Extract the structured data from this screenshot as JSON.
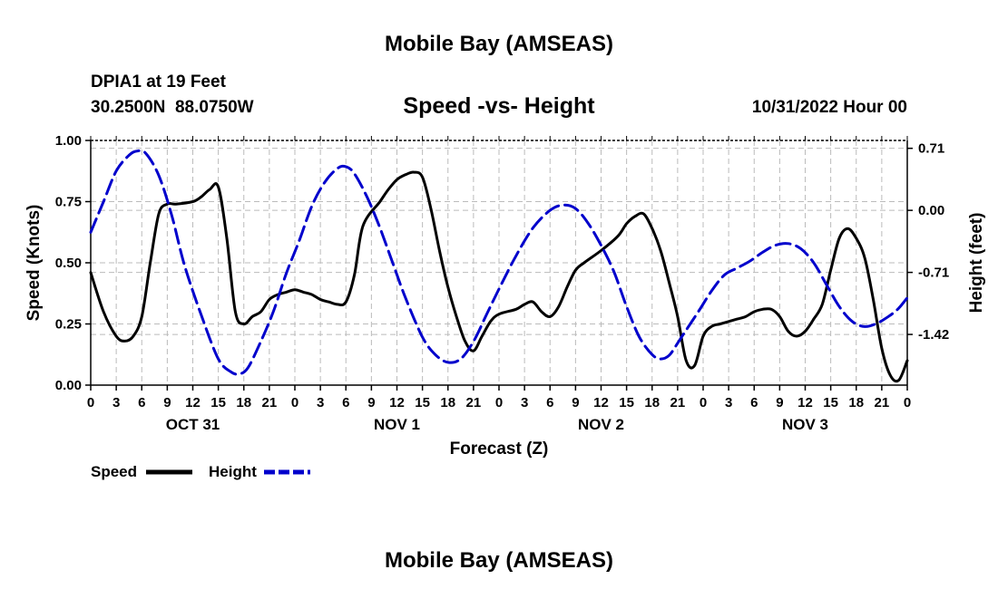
{
  "colors": {
    "speed": "#000000",
    "height": "#0000cc",
    "grid": "#bbbbbb",
    "background": "#ffffff"
  },
  "chart_data": {
    "type": "line",
    "title": "Mobile Bay (AMSEAS)",
    "footer_title": "Mobile Bay (AMSEAS)",
    "station": "DPIA1 at 19 Feet",
    "coords": "30.2500N  88.0750W",
    "subtitle": "Speed -vs- Height",
    "datetime": "10/31/2022 Hour 00",
    "xlabel": "Forecast (Z)",
    "ylabel_left": "Speed (Knots)",
    "ylabel_right": "Height (feet)",
    "xlim": [
      0,
      96
    ],
    "ylim_left": [
      0,
      1
    ],
    "ylim_right": [
      -2.0,
      0.8
    ],
    "x_tick_labels": [
      "0",
      "3",
      "6",
      "9",
      "12",
      "15",
      "18",
      "21",
      "0",
      "3",
      "6",
      "9",
      "12",
      "15",
      "18",
      "21",
      "0",
      "3",
      "6",
      "9",
      "12",
      "15",
      "18",
      "21",
      "0",
      "3",
      "6",
      "9",
      "12",
      "15",
      "18",
      "21",
      "0"
    ],
    "y_ticks_left": [
      "0.00",
      "0.25",
      "0.50",
      "0.75",
      "1.00"
    ],
    "y_ticks_left_values": [
      0,
      0.25,
      0.5,
      0.75,
      1.0
    ],
    "y_ticks_right": [
      "0.71",
      "0.00",
      "-0.71",
      "-1.42"
    ],
    "y_ticks_right_values": [
      0.71,
      0.0,
      -0.71,
      -1.42
    ],
    "day_labels": [
      {
        "label": "OCT 31",
        "hour": 12
      },
      {
        "label": "NOV 1",
        "hour": 36
      },
      {
        "label": "NOV 2",
        "hour": 60
      },
      {
        "label": "NOV 3",
        "hour": 84
      }
    ],
    "legend": [
      {
        "name": "Speed",
        "style": "solid"
      },
      {
        "name": "Height",
        "style": "dashed"
      }
    ],
    "series": [
      {
        "name": "Speed",
        "axis": "left",
        "points": [
          [
            0,
            0.46
          ],
          [
            1.5,
            0.3
          ],
          [
            3,
            0.2
          ],
          [
            4,
            0.18
          ],
          [
            5,
            0.2
          ],
          [
            6,
            0.28
          ],
          [
            7,
            0.5
          ],
          [
            8,
            0.7
          ],
          [
            9,
            0.74
          ],
          [
            10,
            0.74
          ],
          [
            12,
            0.75
          ],
          [
            13,
            0.77
          ],
          [
            14,
            0.8
          ],
          [
            15,
            0.81
          ],
          [
            16,
            0.6
          ],
          [
            17,
            0.3
          ],
          [
            18,
            0.25
          ],
          [
            19,
            0.28
          ],
          [
            20,
            0.3
          ],
          [
            21,
            0.35
          ],
          [
            22,
            0.37
          ],
          [
            23,
            0.38
          ],
          [
            24,
            0.39
          ],
          [
            25,
            0.38
          ],
          [
            26,
            0.37
          ],
          [
            27,
            0.35
          ],
          [
            28,
            0.34
          ],
          [
            29,
            0.33
          ],
          [
            30,
            0.34
          ],
          [
            31,
            0.45
          ],
          [
            32,
            0.65
          ],
          [
            34,
            0.75
          ],
          [
            35,
            0.8
          ],
          [
            36,
            0.84
          ],
          [
            37,
            0.86
          ],
          [
            38,
            0.87
          ],
          [
            39,
            0.85
          ],
          [
            40,
            0.72
          ],
          [
            41,
            0.55
          ],
          [
            42,
            0.4
          ],
          [
            43,
            0.28
          ],
          [
            44,
            0.18
          ],
          [
            45,
            0.14
          ],
          [
            46,
            0.2
          ],
          [
            47,
            0.26
          ],
          [
            48,
            0.29
          ],
          [
            50,
            0.31
          ],
          [
            51,
            0.33
          ],
          [
            52,
            0.34
          ],
          [
            53,
            0.3
          ],
          [
            54,
            0.28
          ],
          [
            55,
            0.32
          ],
          [
            56,
            0.4
          ],
          [
            57,
            0.47
          ],
          [
            58,
            0.5
          ],
          [
            60,
            0.55
          ],
          [
            62,
            0.61
          ],
          [
            63,
            0.66
          ],
          [
            64,
            0.69
          ],
          [
            65,
            0.7
          ],
          [
            66,
            0.64
          ],
          [
            67,
            0.55
          ],
          [
            68,
            0.42
          ],
          [
            69,
            0.28
          ],
          [
            70,
            0.1
          ],
          [
            71,
            0.08
          ],
          [
            72,
            0.2
          ],
          [
            73,
            0.24
          ],
          [
            74,
            0.25
          ],
          [
            75,
            0.26
          ],
          [
            76,
            0.27
          ],
          [
            77,
            0.28
          ],
          [
            78,
            0.3
          ],
          [
            79,
            0.31
          ],
          [
            80,
            0.31
          ],
          [
            81,
            0.28
          ],
          [
            82,
            0.22
          ],
          [
            83,
            0.2
          ],
          [
            84,
            0.22
          ],
          [
            85,
            0.27
          ],
          [
            86,
            0.33
          ],
          [
            87,
            0.47
          ],
          [
            88,
            0.6
          ],
          [
            89,
            0.64
          ],
          [
            90,
            0.6
          ],
          [
            91,
            0.52
          ],
          [
            92,
            0.35
          ],
          [
            93,
            0.15
          ],
          [
            94,
            0.04
          ],
          [
            95,
            0.02
          ],
          [
            96,
            0.1
          ]
        ]
      },
      {
        "name": "Height",
        "axis": "right",
        "points": [
          [
            0,
            -0.25
          ],
          [
            1.5,
            0.1
          ],
          [
            3,
            0.45
          ],
          [
            4.5,
            0.63
          ],
          [
            5.5,
            0.68
          ],
          [
            6.5,
            0.65
          ],
          [
            8,
            0.4
          ],
          [
            9.5,
            -0.05
          ],
          [
            11,
            -0.62
          ],
          [
            13,
            -1.2
          ],
          [
            15,
            -1.7
          ],
          [
            16.5,
            -1.85
          ],
          [
            17.5,
            -1.87
          ],
          [
            18.5,
            -1.8
          ],
          [
            20,
            -1.5
          ],
          [
            21.5,
            -1.15
          ],
          [
            23,
            -0.72
          ],
          [
            24.5,
            -0.35
          ],
          [
            26,
            0.05
          ],
          [
            27.5,
            0.32
          ],
          [
            29,
            0.48
          ],
          [
            30,
            0.5
          ],
          [
            31,
            0.42
          ],
          [
            32.5,
            0.15
          ],
          [
            34,
            -0.2
          ],
          [
            35.5,
            -0.6
          ],
          [
            37,
            -1.0
          ],
          [
            39,
            -1.45
          ],
          [
            40.5,
            -1.65
          ],
          [
            42,
            -1.74
          ],
          [
            43.5,
            -1.7
          ],
          [
            45,
            -1.5
          ],
          [
            46.5,
            -1.2
          ],
          [
            48,
            -0.9
          ],
          [
            50,
            -0.52
          ],
          [
            52,
            -0.2
          ],
          [
            54,
            0.0
          ],
          [
            55.5,
            0.06
          ],
          [
            57,
            0.02
          ],
          [
            58.5,
            -0.15
          ],
          [
            60,
            -0.4
          ],
          [
            61.5,
            -0.7
          ],
          [
            63,
            -1.1
          ],
          [
            64.5,
            -1.45
          ],
          [
            66,
            -1.65
          ],
          [
            67,
            -1.7
          ],
          [
            68,
            -1.66
          ],
          [
            69,
            -1.52
          ],
          [
            70,
            -1.37
          ],
          [
            71.5,
            -1.15
          ],
          [
            73,
            -0.92
          ],
          [
            74.5,
            -0.74
          ],
          [
            76,
            -0.66
          ],
          [
            77.5,
            -0.58
          ],
          [
            79,
            -0.48
          ],
          [
            80.5,
            -0.4
          ],
          [
            82,
            -0.38
          ],
          [
            83.5,
            -0.44
          ],
          [
            85,
            -0.6
          ],
          [
            86.5,
            -0.85
          ],
          [
            88,
            -1.1
          ],
          [
            89.5,
            -1.27
          ],
          [
            91,
            -1.33
          ],
          [
            92.5,
            -1.29
          ],
          [
            94,
            -1.2
          ],
          [
            95,
            -1.12
          ],
          [
            96,
            -1.0
          ]
        ]
      }
    ]
  }
}
